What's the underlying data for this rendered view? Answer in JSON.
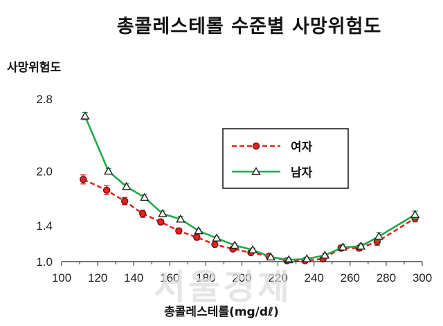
{
  "title": "총콜레스테롤 수준별 사망위험도",
  "watermark": "서울경제",
  "chart_data": {
    "type": "line",
    "ylabel": "사망위험도",
    "xlabel": "총콜레스테롤(mg/dℓ)",
    "xlim": [
      100,
      300
    ],
    "ylim": [
      1.0,
      2.8
    ],
    "xticks": [
      100,
      120,
      140,
      160,
      180,
      200,
      220,
      240,
      260,
      280,
      300
    ],
    "yticks": [
      "1.0",
      "1.4",
      "2.0",
      "2.8"
    ],
    "ytick_values": [
      1.0,
      1.4,
      2.0,
      2.8
    ],
    "grid": false,
    "legend_position": "upper-right",
    "series": [
      {
        "name": "여자",
        "color": "#e8231f",
        "style": "dashed",
        "marker": "circle",
        "x": [
          112,
          125,
          135,
          145,
          155,
          165,
          175,
          185,
          195,
          205,
          215,
          225,
          235,
          245,
          255,
          265,
          275,
          296
        ],
        "y": [
          1.91,
          1.79,
          1.67,
          1.53,
          1.44,
          1.34,
          1.27,
          1.19,
          1.14,
          1.1,
          1.06,
          1.01,
          1.01,
          1.03,
          1.15,
          1.15,
          1.22,
          1.48
        ],
        "err": [
          0.05,
          0.05,
          0.04,
          0.04,
          0.03,
          0.03,
          0.03,
          0.02,
          0.02,
          0.02,
          0.02,
          0.02,
          0.02,
          0.03,
          0.03,
          0.03,
          0.04,
          0.04
        ]
      },
      {
        "name": "남자",
        "color": "#22a84a",
        "style": "solid",
        "marker": "triangle",
        "x": [
          113,
          126,
          136,
          146,
          156,
          166,
          176,
          186,
          196,
          206,
          216,
          226,
          236,
          246,
          256,
          266,
          276,
          296
        ],
        "y": [
          2.61,
          2.0,
          1.83,
          1.71,
          1.53,
          1.47,
          1.34,
          1.26,
          1.18,
          1.13,
          1.05,
          1.02,
          1.03,
          1.07,
          1.16,
          1.17,
          1.28,
          1.52
        ],
        "err": [
          0.04,
          0.03,
          0.03,
          0.03,
          0.03,
          0.03,
          0.02,
          0.02,
          0.02,
          0.02,
          0.02,
          0.02,
          0.02,
          0.02,
          0.03,
          0.03,
          0.04,
          0.04
        ]
      }
    ]
  }
}
